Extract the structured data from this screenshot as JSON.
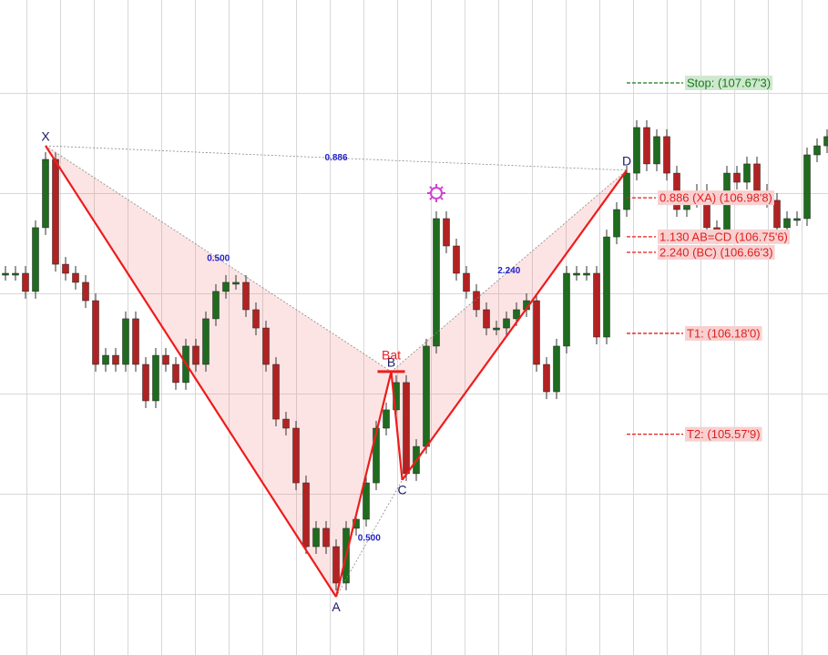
{
  "chart_data": {
    "type": "harmonic",
    "xlim": [
      -0.545,
      82.09
    ],
    "ylim": [
      104.263,
      108.167
    ],
    "up_color": "#1f6b1f",
    "down_color": "#b22222",
    "values": [
      106.538,
      106.538,
      106.43,
      106.81,
      107.217,
      106.592,
      106.538,
      106.484,
      106.375,
      105.995,
      106.049,
      105.995,
      106.267,
      105.995,
      105.778,
      106.049,
      105.995,
      105.887,
      106.104,
      105.995,
      106.267,
      106.43,
      106.484,
      106.484,
      106.321,
      106.212,
      105.995,
      105.669,
      105.615,
      105.289,
      104.909,
      105.018,
      104.909,
      104.692,
      105.018,
      105.072,
      105.289,
      105.615,
      105.724,
      105.887,
      105.344,
      105.506,
      106.104,
      106.864,
      106.701,
      106.538,
      106.43,
      106.321,
      106.212,
      106.212,
      106.267,
      106.321,
      106.375,
      105.995,
      105.832,
      106.104,
      106.538,
      106.538,
      106.538,
      106.158,
      106.755,
      106.918,
      107.135,
      107.407,
      107.19,
      107.353,
      107.135,
      106.918,
      106.973,
      107.027,
      106.81,
      106.755,
      107.135,
      107.081,
      107.19,
      107.027,
      106.973,
      106.81,
      106.864,
      106.864,
      107.244,
      107.298,
      107.353
    ],
    "pattern": {
      "name": "Bat",
      "points": [
        {
          "label": "X",
          "x": 4,
          "price": 107.298
        },
        {
          "label": "A",
          "x": 33,
          "price": 104.61
        },
        {
          "label": "B",
          "x": 38.5,
          "price": 105.952
        },
        {
          "label": "C",
          "x": 39.6,
          "price": 105.306
        },
        {
          "label": "D",
          "x": 62,
          "price": 107.152
        }
      ],
      "ratios": [
        {
          "label": "0.500",
          "from": 0,
          "to": 2
        },
        {
          "label": "0.500",
          "from": 1,
          "to": 3
        },
        {
          "label": "0.886",
          "from": 0,
          "to": 4
        },
        {
          "label": "2.240",
          "from": 2,
          "to": 4
        }
      ]
    },
    "marker": {
      "x": 43,
      "price": 107.016
    },
    "levels": [
      {
        "label": "Stop: (107.67'3)",
        "value": 107.673,
        "color": "#1a7a1a"
      },
      {
        "label": "0.886 (XA) (106.98'8)",
        "value": 106.988,
        "color": "#e02020"
      },
      {
        "label": "1.130 AB=CD (106.75'6)",
        "value": 106.756,
        "color": "#e02020"
      },
      {
        "label": "2.240 (BC) (106.66'3)",
        "value": 106.663,
        "color": "#e02020"
      },
      {
        "label": "T1: (106.18'0)",
        "value": 106.18,
        "color": "#e02020"
      },
      {
        "label": "T2: (105.57'9)",
        "value": 105.579,
        "color": "#e02020"
      }
    ]
  }
}
